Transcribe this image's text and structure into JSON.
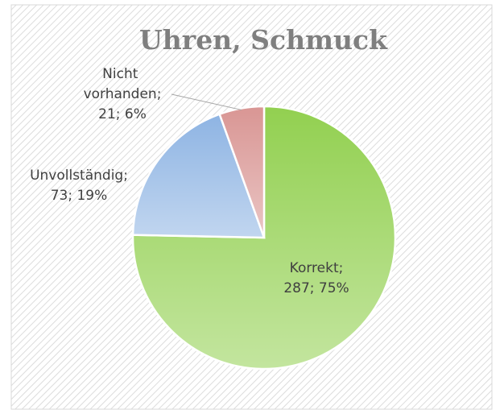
{
  "chart_data": {
    "type": "pie",
    "title": "Uhren, Schmuck",
    "categories": [
      "Korrekt;",
      "Unvollständig;",
      "Nicht vorhanden;"
    ],
    "values": [
      287,
      73,
      21
    ],
    "value_labels": [
      "287; 75%",
      "73; 19%",
      "21; 6%"
    ],
    "colors": [
      "#92d050",
      "#8eb4e3",
      "#d99694"
    ]
  }
}
